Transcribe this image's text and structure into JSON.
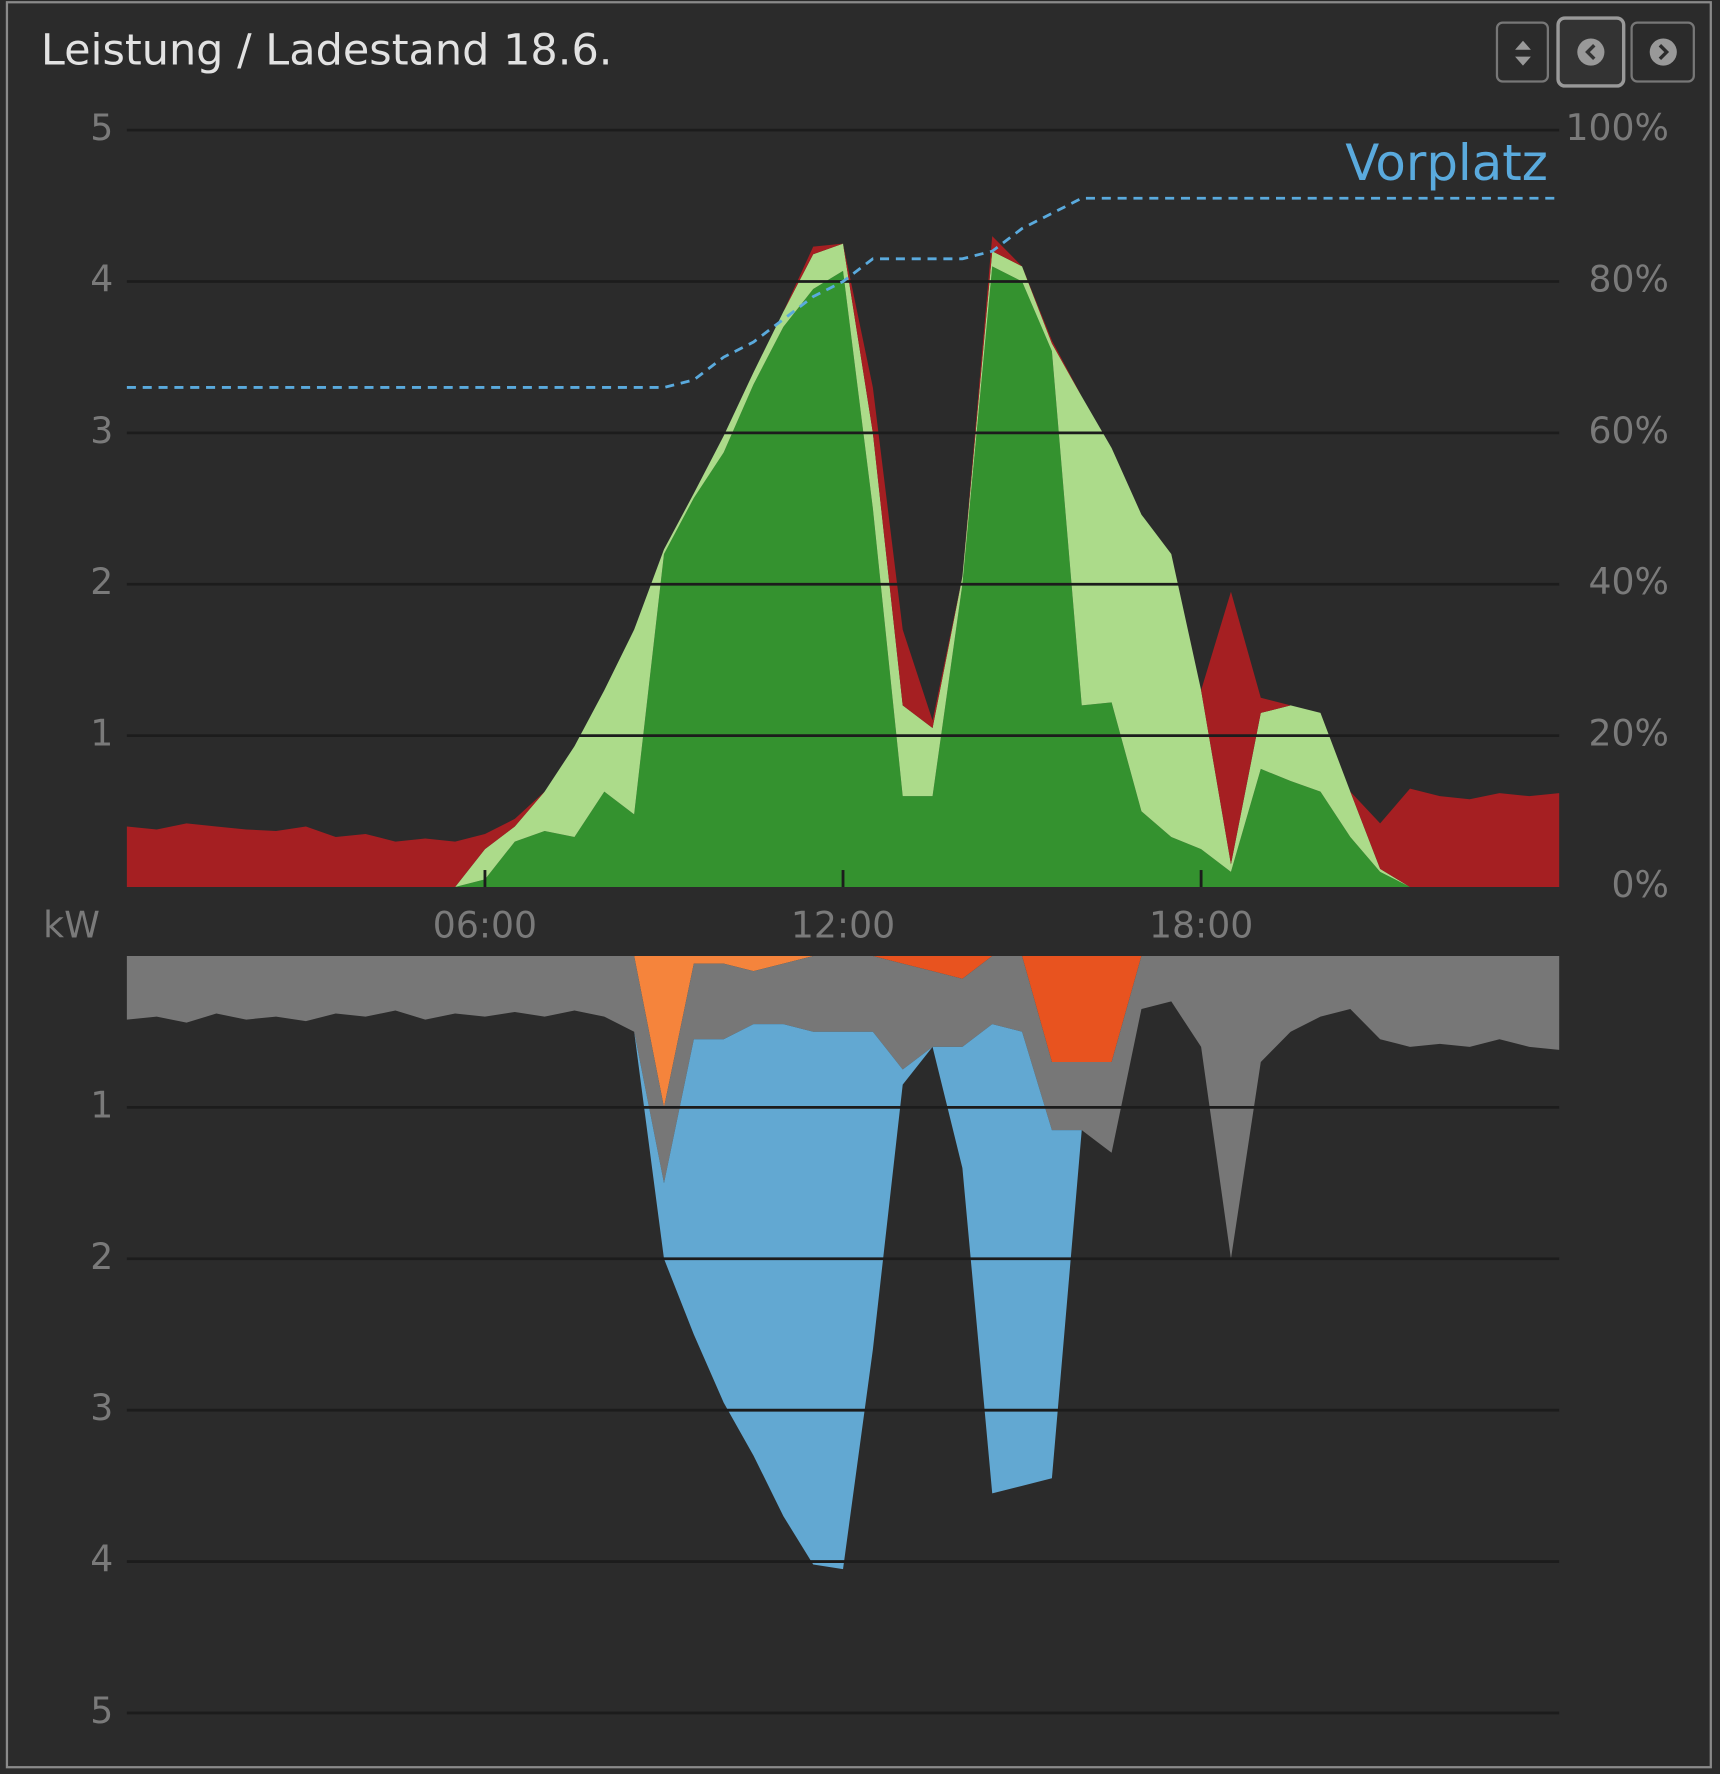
{
  "chart_data": [
    {
      "type": "area",
      "title": "Leistung / Ladestand 18.6.",
      "y_label": "kW",
      "stacked": true,
      "grid": true,
      "legend": "top-right",
      "x": [
        0,
        0.5,
        1,
        1.5,
        2,
        2.5,
        3,
        3.5,
        4,
        4.5,
        5,
        5.5,
        6,
        6.5,
        7,
        7.5,
        8,
        8.5,
        9,
        9.5,
        10,
        10.5,
        11,
        11.5,
        12,
        12.5,
        13,
        13.5,
        14,
        14.5,
        15,
        15.5,
        16,
        16.5,
        17,
        17.5,
        18,
        18.5,
        19,
        19.5,
        20,
        20.5,
        21,
        21.5,
        22,
        22.5,
        23,
        23.5,
        24
      ],
      "xlim": [
        0,
        24
      ],
      "xticks": [
        {
          "value": 6,
          "label": "06:00"
        },
        {
          "value": 12,
          "label": "12:00"
        },
        {
          "value": 18,
          "label": "18:00"
        }
      ],
      "ylim": [
        0,
        5
      ],
      "yticks": [
        1,
        2,
        3,
        4,
        5
      ],
      "y2lim": [
        0,
        100
      ],
      "y2ticks": [
        {
          "value": 0,
          "label": "0%"
        },
        {
          "value": 20,
          "label": "20%"
        },
        {
          "value": 40,
          "label": "40%"
        },
        {
          "value": 60,
          "label": "60%"
        },
        {
          "value": 80,
          "label": "80%"
        },
        {
          "value": 100,
          "label": "100%"
        }
      ],
      "series": [
        {
          "color": "#34922f",
          "values": [
            0,
            0,
            0,
            0,
            0,
            0,
            0,
            0,
            0,
            0,
            0,
            0,
            0.05,
            0.3,
            0.37,
            0.33,
            0.63,
            0.48,
            2.2,
            2.57,
            2.87,
            3.32,
            3.7,
            3.95,
            4.07,
            2.5,
            0.6,
            0.6,
            2.0,
            4.1,
            4.0,
            3.54,
            1.2,
            1.22,
            0.5,
            0.33,
            0.25,
            0.1,
            0.78,
            0.7,
            0.63,
            0.33,
            0.1,
            0,
            0,
            0,
            0,
            0,
            0
          ]
        },
        {
          "color": "#acdb8a",
          "values": [
            0,
            0,
            0,
            0,
            0,
            0,
            0,
            0,
            0,
            0,
            0,
            0,
            0.2,
            0.1,
            0.26,
            0.6,
            0.67,
            1.22,
            0.03,
            0.03,
            0.11,
            0.08,
            0.1,
            0.23,
            0.18,
            0.5,
            0.6,
            0.45,
            0.05,
            0.1,
            0.1,
            0.05,
            2.04,
            1.68,
            1.96,
            1.87,
            1.05,
            0.05,
            0.37,
            0.5,
            0.52,
            0.3,
            0.02,
            0,
            0,
            0,
            0,
            0,
            0
          ]
        },
        {
          "color": "#a51f22",
          "values": [
            0.4,
            0.38,
            0.42,
            0.4,
            0.38,
            0.37,
            0.4,
            0.33,
            0.35,
            0.3,
            0.32,
            0.3,
            0.1,
            0.05,
            0,
            0,
            0,
            0,
            0,
            0,
            0,
            0,
            0,
            0.05,
            0,
            0.3,
            0.5,
            0.05,
            0,
            0.1,
            0,
            0.02,
            0,
            0,
            0,
            0,
            0,
            1.8,
            0.1,
            0,
            0,
            0,
            0.3,
            0.65,
            0.6,
            0.58,
            0.62,
            0.6,
            0.62
          ]
        },
        {
          "name": "Vorplatz",
          "type": "line",
          "dashed": true,
          "axis": "y2",
          "color": "#5aaadd",
          "values": [
            66,
            66,
            66,
            66,
            66,
            66,
            66,
            66,
            66,
            66,
            66,
            66,
            66,
            66,
            66,
            66,
            66,
            66,
            66,
            67,
            70,
            72,
            75,
            78,
            80,
            83,
            83,
            83,
            83,
            84,
            87,
            89,
            91,
            91,
            91,
            91,
            91,
            91,
            91,
            91,
            91,
            91,
            91,
            91,
            91,
            91,
            91,
            91,
            91
          ]
        }
      ]
    },
    {
      "type": "area",
      "stacked": true,
      "inverted": true,
      "grid": true,
      "x": [
        0,
        0.5,
        1,
        1.5,
        2,
        2.5,
        3,
        3.5,
        4,
        4.5,
        5,
        5.5,
        6,
        6.5,
        7,
        7.5,
        8,
        8.5,
        9,
        9.5,
        10,
        10.5,
        11,
        11.5,
        12,
        12.5,
        13,
        13.5,
        14,
        14.5,
        15,
        15.5,
        16,
        16.5,
        17,
        17.5,
        18,
        18.5,
        19,
        19.5,
        20,
        20.5,
        21,
        21.5,
        22,
        22.5,
        23,
        23.5,
        24
      ],
      "xlim": [
        0,
        24
      ],
      "ylim": [
        0,
        5
      ],
      "yticks": [
        1,
        2,
        3,
        4,
        5
      ],
      "series": [
        {
          "color": "#f5843c",
          "values": [
            0,
            0,
            0,
            0,
            0,
            0,
            0,
            0,
            0,
            0,
            0,
            0,
            0,
            0,
            0,
            0,
            0,
            0,
            1.0,
            0.05,
            0.05,
            0.1,
            0.05,
            0,
            0,
            0,
            0,
            0,
            0,
            0,
            0,
            0,
            0,
            0,
            0,
            0,
            0,
            0,
            0,
            0,
            0,
            0,
            0,
            0,
            0,
            0,
            0,
            0,
            0
          ]
        },
        {
          "color": "#e8531f",
          "values": [
            0,
            0,
            0,
            0,
            0,
            0,
            0,
            0,
            0,
            0,
            0,
            0,
            0,
            0,
            0,
            0,
            0,
            0,
            0,
            0,
            0,
            0,
            0,
            0,
            0,
            0,
            0.05,
            0.1,
            0.15,
            0,
            0,
            0.7,
            0.7,
            0.7,
            0,
            0,
            0,
            0,
            0,
            0,
            0,
            0,
            0,
            0,
            0,
            0,
            0,
            0,
            0
          ]
        },
        {
          "color": "#777777",
          "values": [
            0.42,
            0.4,
            0.44,
            0.38,
            0.42,
            0.4,
            0.43,
            0.38,
            0.4,
            0.36,
            0.42,
            0.38,
            0.4,
            0.37,
            0.4,
            0.36,
            0.4,
            0.5,
            0.5,
            0.5,
            0.5,
            0.35,
            0.4,
            0.5,
            0.5,
            0.5,
            0.7,
            0.5,
            0.45,
            0.45,
            0.5,
            0.45,
            0.45,
            0.6,
            0.35,
            0.3,
            0.6,
            2.0,
            0.7,
            0.5,
            0.4,
            0.35,
            0.55,
            0.6,
            0.58,
            0.6,
            0.55,
            0.6,
            0.62
          ]
        },
        {
          "color": "#62a8d2",
          "values": [
            0,
            0,
            0,
            0,
            0,
            0,
            0,
            0,
            0,
            0,
            0,
            0,
            0,
            0,
            0,
            0,
            0,
            0,
            0.5,
            1.95,
            2.4,
            2.85,
            3.25,
            3.52,
            3.55,
            2.1,
            0.1,
            0,
            0.8,
            3.1,
            3.0,
            2.3,
            0,
            0,
            0,
            0,
            0,
            0,
            0,
            0,
            0,
            0,
            0,
            0,
            0,
            0,
            0,
            0,
            0
          ]
        }
      ]
    }
  ]
}
